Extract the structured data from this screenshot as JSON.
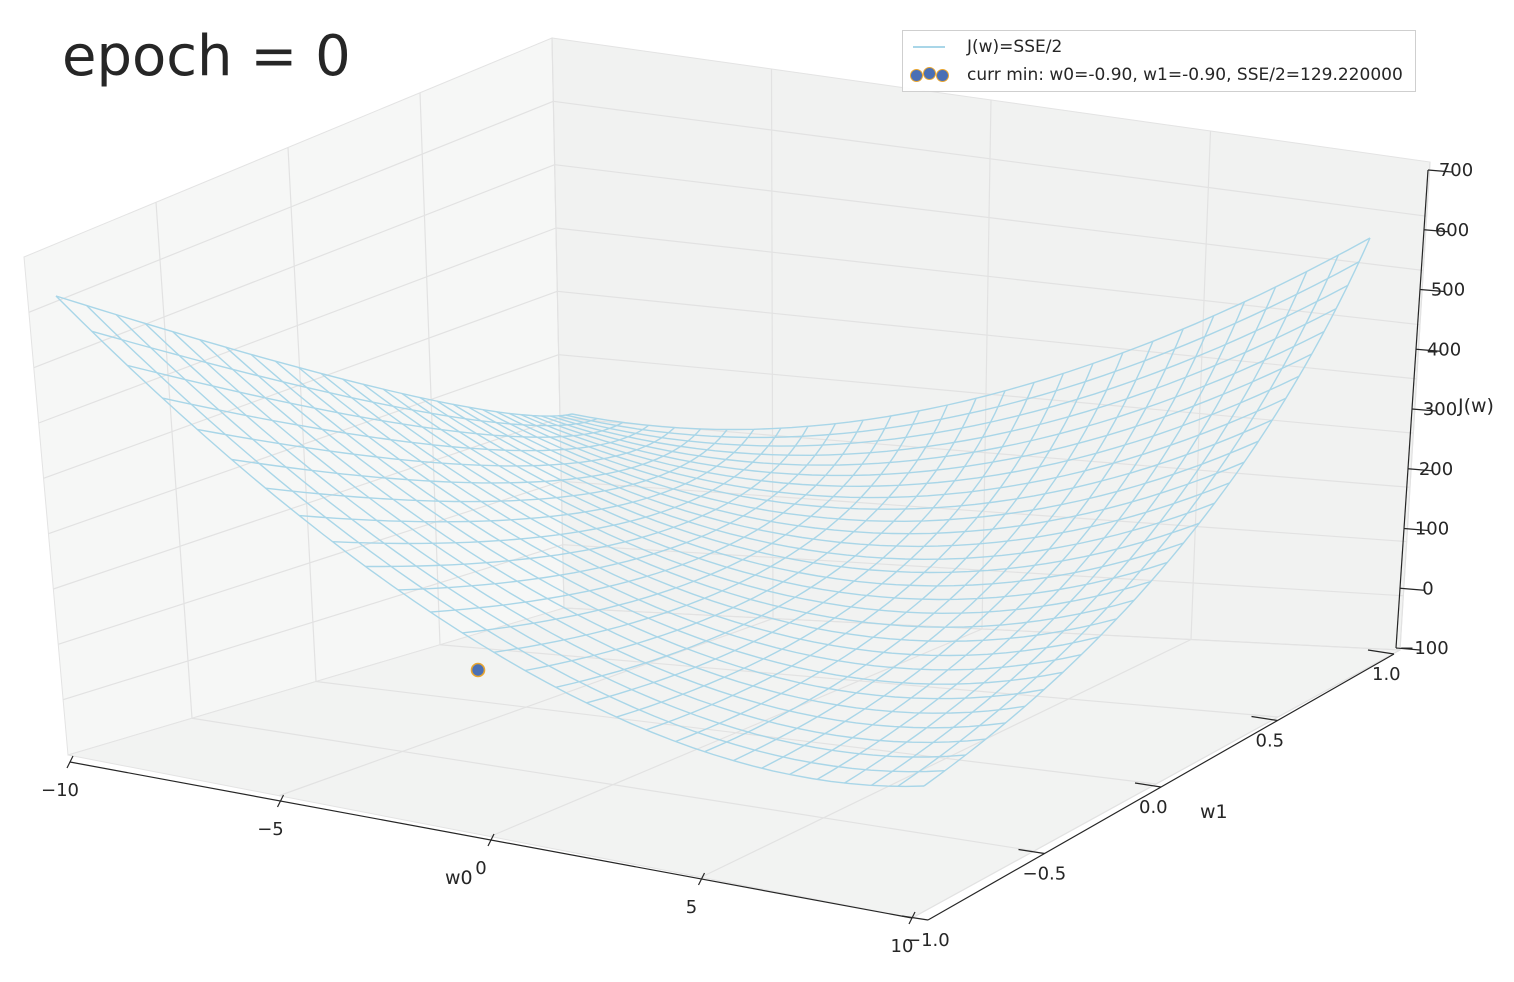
{
  "chart_data": {
    "type": "surface3d",
    "title": "epoch = 0",
    "xlabel": "w0",
    "ylabel": "w1",
    "zlabel": "J(w)",
    "xlim": [
      -10,
      10
    ],
    "ylim": [
      -1,
      1
    ],
    "zlim": [
      -100,
      700
    ],
    "xticks": [
      "−10",
      "−5",
      "0",
      "5",
      "10"
    ],
    "yticks": [
      "−1.0",
      "−0.5",
      "0.0",
      "0.5",
      "1.0"
    ],
    "zticks": [
      "−100",
      "0",
      "100",
      "200",
      "300",
      "400",
      "500",
      "600",
      "700"
    ],
    "grid": true,
    "legend_position": "top-right",
    "legend": [
      {
        "label": "J(w)=SSE/2",
        "marker": "line",
        "color": "#a9d6e8"
      },
      {
        "label": "curr min: w0=-0.90, w1=-0.90, SSE/2=129.220000",
        "marker": "dot",
        "color": "#4a6fb5"
      }
    ],
    "surface": {
      "w0_range": [
        -10,
        10
      ],
      "w1_range": [
        -1,
        1
      ],
      "corner_values": {
        "w0=-10,w1=-1": 580,
        "w0=-10,w1=1": 305,
        "w0=10,w1=-1": 25,
        "w0=10,w1=1": 640
      },
      "color": "#a9d6e8"
    },
    "current_point": {
      "w0": -0.9,
      "w1": -0.9,
      "J": 129.22
    }
  }
}
